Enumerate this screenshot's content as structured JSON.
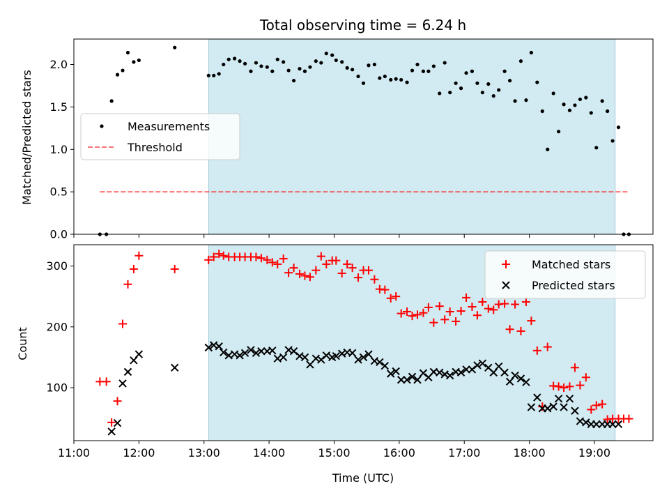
{
  "figure": {
    "title": "Total observing time = 6.24 h",
    "xlabel": "Time (UTC)",
    "xticks": [
      "11:00",
      "12:00",
      "13:00",
      "14:00",
      "15:00",
      "16:00",
      "17:00",
      "18:00",
      "19:00"
    ]
  },
  "colors": {
    "shade": "#add8e6",
    "measurements": "#000000",
    "threshold": "#ff0000",
    "matched": "#ff0000",
    "predicted": "#000000"
  },
  "chart_data": [
    {
      "type": "scatter",
      "x_unit": "hours UTC",
      "xlim": [
        11.0,
        19.9
      ],
      "ylim": [
        0.0,
        2.3
      ],
      "ylabel": "Matched/Predicted stars",
      "yticks": [
        "0.0",
        "0.5",
        "1.0",
        "1.5",
        "2.0"
      ],
      "shaded_region": [
        13.07,
        19.32
      ],
      "legend": {
        "placement": "center-left",
        "entries": [
          "Measurements",
          "Threshold"
        ]
      },
      "threshold": {
        "name": "Threshold",
        "y": 0.5,
        "x_range": [
          11.4,
          19.53
        ],
        "style": "dashed"
      },
      "series": [
        {
          "name": "Measurements",
          "x": [
            11.4,
            11.5,
            11.58,
            11.67,
            11.75,
            11.83,
            11.92,
            12.0,
            12.55,
            13.07,
            13.15,
            13.23,
            13.3,
            13.38,
            13.47,
            13.55,
            13.63,
            13.72,
            13.8,
            13.88,
            13.97,
            14.05,
            14.13,
            14.22,
            14.3,
            14.38,
            14.47,
            14.55,
            14.63,
            14.72,
            14.8,
            14.88,
            14.97,
            15.03,
            15.12,
            15.2,
            15.28,
            15.37,
            15.45,
            15.53,
            15.62,
            15.7,
            15.78,
            15.87,
            15.95,
            16.03,
            16.12,
            16.2,
            16.28,
            16.37,
            16.45,
            16.53,
            16.62,
            16.7,
            16.78,
            16.87,
            16.95,
            17.03,
            17.12,
            17.2,
            17.28,
            17.37,
            17.45,
            17.53,
            17.62,
            17.7,
            17.78,
            17.87,
            17.95,
            18.03,
            18.12,
            18.2,
            18.28,
            18.37,
            18.45,
            18.53,
            18.62,
            18.7,
            18.78,
            18.87,
            18.95,
            19.03,
            19.12,
            19.2,
            19.28,
            19.37,
            19.45,
            19.53
          ],
          "y": [
            0.0,
            0.0,
            1.57,
            1.88,
            1.93,
            2.14,
            2.03,
            2.05,
            2.2,
            1.87,
            1.87,
            1.89,
            2.0,
            2.06,
            2.07,
            2.04,
            2.01,
            1.92,
            2.02,
            1.98,
            1.97,
            1.92,
            2.06,
            2.03,
            1.93,
            1.81,
            1.95,
            1.92,
            1.97,
            2.04,
            2.02,
            2.13,
            2.11,
            2.05,
            2.03,
            1.96,
            1.94,
            1.86,
            1.78,
            1.99,
            2.0,
            1.84,
            1.86,
            1.82,
            1.83,
            1.82,
            1.79,
            1.93,
            2.0,
            1.92,
            1.92,
            1.98,
            1.66,
            2.02,
            1.67,
            1.78,
            1.72,
            1.9,
            1.92,
            1.78,
            1.67,
            1.77,
            1.63,
            1.7,
            1.92,
            1.81,
            1.57,
            2.04,
            1.58,
            2.14,
            1.79,
            1.45,
            1.0,
            1.66,
            1.21,
            1.53,
            1.46,
            1.52,
            1.59,
            1.61,
            1.43,
            1.02,
            1.57,
            1.45,
            1.1,
            1.26,
            0.0,
            0.0
          ]
        }
      ]
    },
    {
      "type": "scatter",
      "x_unit": "hours UTC",
      "xlim": [
        11.0,
        19.9
      ],
      "ylim": [
        13,
        335
      ],
      "ylabel": "Count",
      "yticks": [
        "100",
        "200",
        "300"
      ],
      "shaded_region": [
        13.07,
        19.32
      ],
      "legend": {
        "placement": "top-right",
        "entries": [
          "Matched stars",
          "Predicted stars"
        ]
      },
      "series": [
        {
          "name": "Matched stars",
          "marker": "plus",
          "x": [
            11.4,
            11.5,
            11.58,
            11.67,
            11.75,
            11.83,
            11.92,
            12.0,
            12.55,
            13.07,
            13.15,
            13.23,
            13.3,
            13.38,
            13.47,
            13.55,
            13.63,
            13.72,
            13.8,
            13.88,
            13.97,
            14.05,
            14.13,
            14.22,
            14.3,
            14.38,
            14.47,
            14.55,
            14.63,
            14.72,
            14.8,
            14.88,
            14.97,
            15.03,
            15.12,
            15.2,
            15.28,
            15.37,
            15.45,
            15.53,
            15.62,
            15.7,
            15.78,
            15.87,
            15.95,
            16.03,
            16.12,
            16.2,
            16.28,
            16.37,
            16.45,
            16.53,
            16.62,
            16.7,
            16.78,
            16.87,
            16.95,
            17.03,
            17.12,
            17.2,
            17.28,
            17.37,
            17.45,
            17.53,
            17.62,
            17.7,
            17.78,
            17.87,
            17.95,
            18.03,
            18.12,
            18.2,
            18.28,
            18.37,
            18.45,
            18.53,
            18.62,
            18.7,
            18.78,
            18.87,
            18.95,
            19.03,
            19.12,
            19.2,
            19.28,
            19.37,
            19.45,
            19.53
          ],
          "y": [
            110,
            110,
            43,
            78,
            205,
            270,
            295,
            317,
            295,
            310,
            315,
            320,
            317,
            315,
            315,
            315,
            315,
            315,
            315,
            313,
            310,
            306,
            303,
            312,
            289,
            297,
            287,
            284,
            282,
            293,
            316,
            303,
            309,
            309,
            288,
            303,
            297,
            281,
            293,
            293,
            278,
            262,
            261,
            247,
            250,
            222,
            225,
            218,
            220,
            223,
            232,
            207,
            234,
            212,
            225,
            209,
            226,
            248,
            233,
            219,
            241,
            230,
            228,
            237,
            238,
            196,
            237,
            193,
            241,
            210,
            161,
            69,
            167,
            103,
            102,
            100,
            102,
            133,
            104,
            117,
            64,
            71,
            73,
            48,
            49,
            49,
            49,
            49
          ]
        },
        {
          "name": "Predicted stars",
          "marker": "cross",
          "x": [
            11.58,
            11.67,
            11.75,
            11.83,
            11.92,
            12.0,
            12.55,
            13.07,
            13.15,
            13.23,
            13.3,
            13.38,
            13.47,
            13.55,
            13.63,
            13.72,
            13.8,
            13.88,
            13.97,
            14.05,
            14.13,
            14.22,
            14.3,
            14.38,
            14.47,
            14.55,
            14.63,
            14.72,
            14.8,
            14.88,
            14.97,
            15.03,
            15.12,
            15.2,
            15.28,
            15.37,
            15.45,
            15.53,
            15.62,
            15.7,
            15.78,
            15.87,
            15.95,
            16.03,
            16.12,
            16.2,
            16.28,
            16.37,
            16.45,
            16.53,
            16.62,
            16.7,
            16.78,
            16.87,
            16.95,
            17.03,
            17.12,
            17.2,
            17.28,
            17.37,
            17.45,
            17.53,
            17.62,
            17.7,
            17.78,
            17.87,
            17.95,
            18.03,
            18.12,
            18.2,
            18.28,
            18.37,
            18.45,
            18.53,
            18.62,
            18.7,
            18.78,
            18.87,
            18.95,
            19.03,
            19.12,
            19.2,
            19.28,
            19.37
          ],
          "y": [
            28,
            42,
            107,
            126,
            145,
            155,
            133,
            166,
            170,
            168,
            158,
            153,
            155,
            153,
            157,
            162,
            157,
            160,
            160,
            161,
            148,
            150,
            162,
            160,
            152,
            150,
            138,
            148,
            146,
            153,
            150,
            152,
            156,
            158,
            157,
            146,
            150,
            155,
            144,
            142,
            136,
            123,
            127,
            113,
            113,
            118,
            113,
            124,
            117,
            126,
            125,
            122,
            120,
            126,
            125,
            130,
            130,
            137,
            140,
            133,
            125,
            135,
            125,
            110,
            120,
            115,
            109,
            68,
            84,
            66,
            66,
            69,
            82,
            68,
            82,
            62,
            45,
            43,
            40,
            40,
            40,
            40,
            40,
            40
          ]
        }
      ]
    }
  ]
}
